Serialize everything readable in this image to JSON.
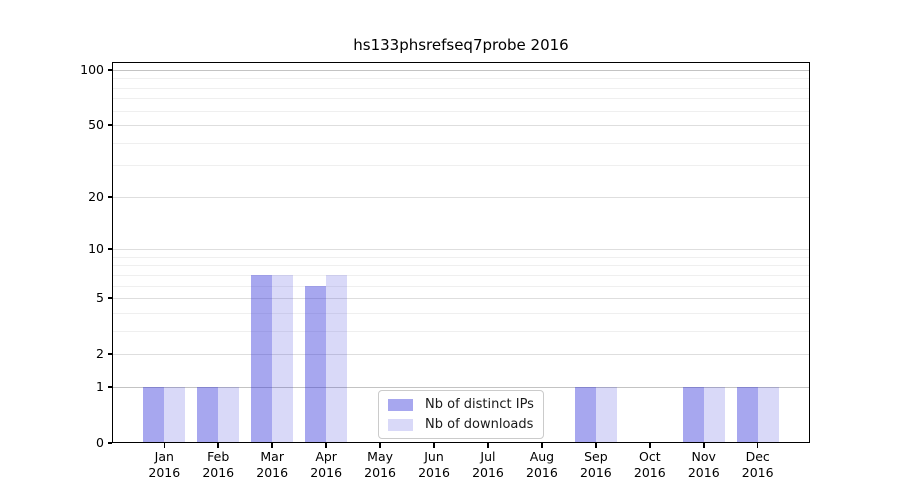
{
  "title": "hs133phsrefseq7probe 2016",
  "chart_data": {
    "type": "bar",
    "title": "hs133phsrefseq7probe 2016",
    "categories": [
      "Jan 2016",
      "Feb 2016",
      "Mar 2016",
      "Apr 2016",
      "May 2016",
      "Jun 2016",
      "Jul 2016",
      "Aug 2016",
      "Sep 2016",
      "Oct 2016",
      "Nov 2016",
      "Dec 2016"
    ],
    "series": [
      {
        "name": "Nb of distinct IPs",
        "color": "#2e2ed8",
        "alpha": 0.42,
        "values": [
          1,
          1,
          7,
          6,
          0,
          0,
          0,
          0,
          1,
          0,
          1,
          1
        ]
      },
      {
        "name": "Nb of downloads",
        "color": "#2e2ed8",
        "alpha": 0.18,
        "values": [
          1,
          1,
          7,
          7,
          0,
          0,
          0,
          0,
          1,
          0,
          1,
          1
        ]
      }
    ],
    "xlabel": "",
    "ylabel": "",
    "yscale": "log1p",
    "ylim": [
      0,
      111
    ],
    "yticks": [
      0,
      1,
      2,
      5,
      10,
      20,
      50,
      100
    ],
    "minor_gridlines": [
      3,
      4,
      6,
      7,
      8,
      9,
      30,
      40,
      60,
      70,
      80,
      90
    ],
    "emphasized_gridlines": [
      1,
      100
    ],
    "grid": true,
    "legend_position": "lower center"
  },
  "colors": {
    "background": "#ffffff",
    "axis": "#000000",
    "text": "#1a1a1a",
    "grid_major": "#dedede",
    "grid_minor": "#efefef",
    "grid_emphasis": "#c3c3c3",
    "bar_dark_rendered": "#a8a8f0",
    "bar_light_rendered": "#d9d9f7"
  }
}
